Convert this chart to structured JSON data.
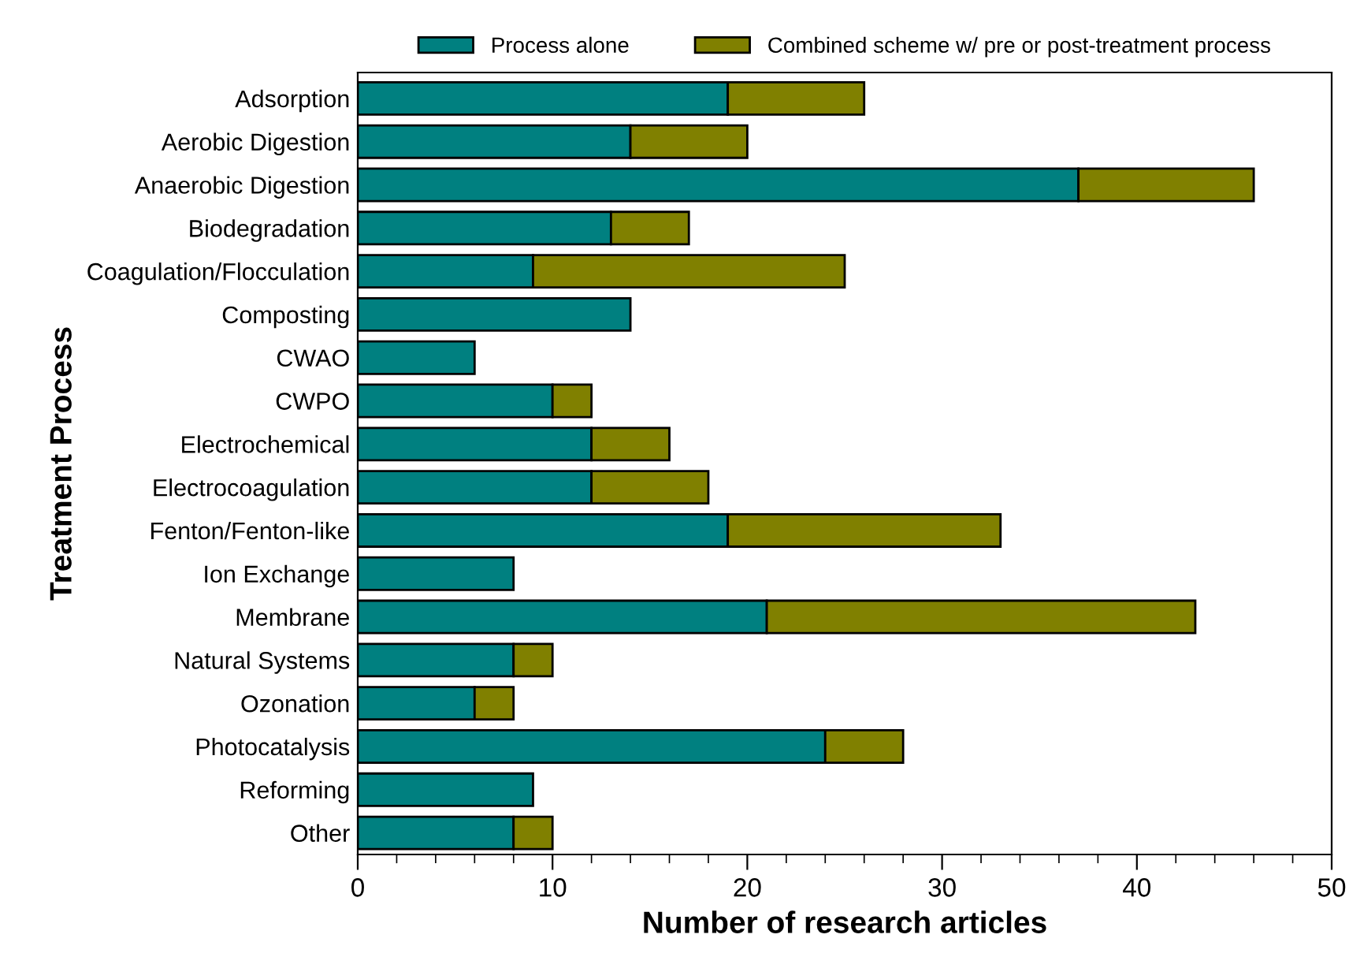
{
  "chart_data": {
    "type": "bar",
    "orientation": "horizontal",
    "stacked": true,
    "xlabel": "Number of research articles",
    "ylabel": "Treatment Process",
    "categories": [
      "Adsorption",
      "Aerobic Digestion",
      "Anaerobic Digestion",
      "Biodegradation",
      "Coagulation/Flocculation",
      "Composting",
      "CWAO",
      "CWPO",
      "Electrochemical",
      "Electrocoagulation",
      "Fenton/Fenton-like",
      "Ion Exchange",
      "Membrane",
      "Natural Systems",
      "Ozonation",
      "Photocatalysis",
      "Reforming",
      "Other"
    ],
    "series": [
      {
        "name": "Process alone",
        "color": "#008080",
        "values": [
          19,
          14,
          37,
          13,
          9,
          14,
          6,
          10,
          12,
          12,
          19,
          8,
          21,
          8,
          6,
          24,
          9,
          8
        ]
      },
      {
        "name": "Combined scheme w/ pre or post-treatment process",
        "color": "#808000",
        "values": [
          7,
          6,
          9,
          4,
          16,
          0,
          0,
          2,
          4,
          6,
          14,
          0,
          22,
          2,
          2,
          4,
          0,
          2
        ]
      }
    ],
    "xlim": [
      0,
      50
    ],
    "xticks": [
      0,
      10,
      20,
      30,
      40,
      50
    ],
    "grid": false,
    "legend": "top"
  }
}
